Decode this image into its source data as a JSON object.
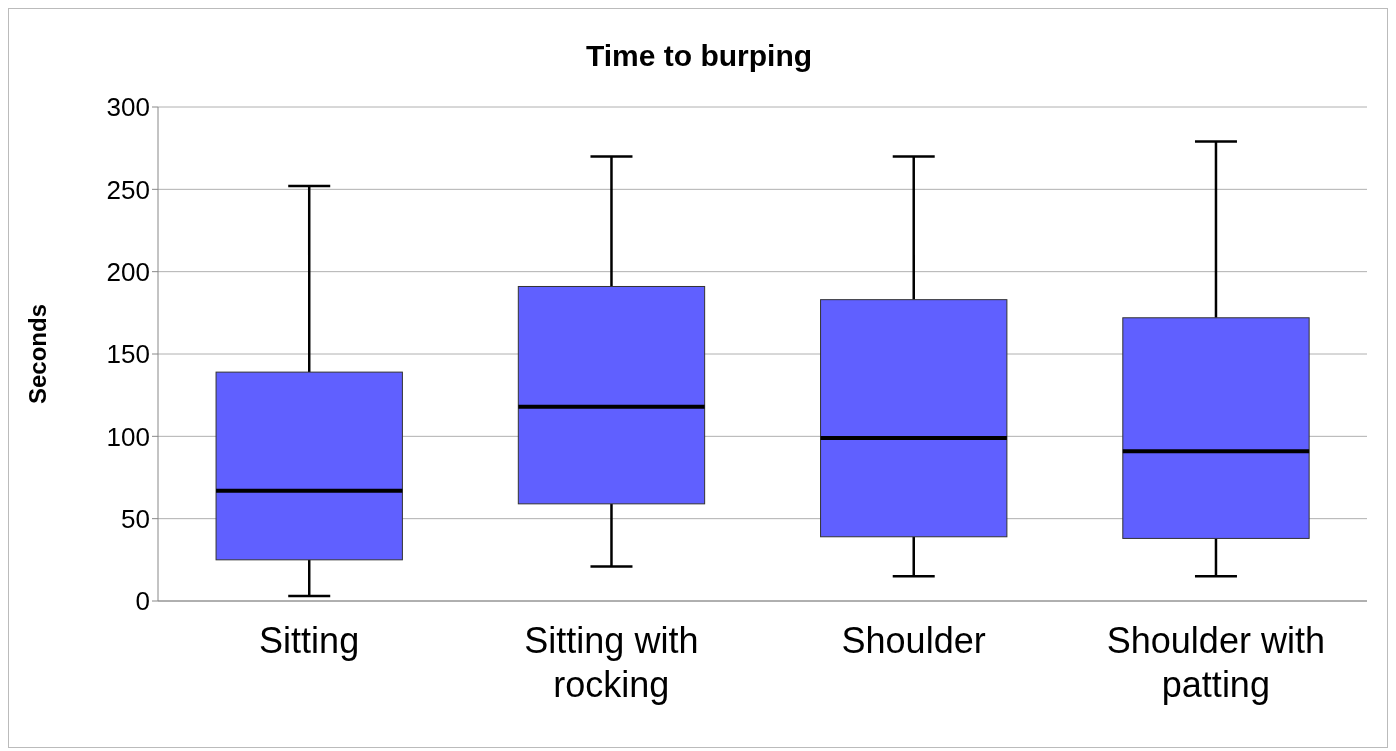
{
  "chart_data": {
    "type": "box",
    "title": "Time to burping",
    "ylabel": "Seconds",
    "categories": [
      "Sitting",
      "Sitting with rocking",
      "Shoulder",
      "Shoulder with patting"
    ],
    "boxes": [
      {
        "low": 3,
        "q1": 25,
        "median": 67,
        "q3": 139,
        "high": 252
      },
      {
        "low": 21,
        "q1": 59,
        "median": 118,
        "q3": 191,
        "high": 270
      },
      {
        "low": 15,
        "q1": 39,
        "median": 99,
        "q3": 183,
        "high": 270
      },
      {
        "low": 15,
        "q1": 38,
        "median": 91,
        "q3": 172,
        "high": 279
      }
    ],
    "color": "#6060ff",
    "ylim": [
      0,
      300
    ],
    "yticks": [
      0,
      50,
      100,
      150,
      200,
      250,
      300
    ],
    "grid": "y"
  }
}
